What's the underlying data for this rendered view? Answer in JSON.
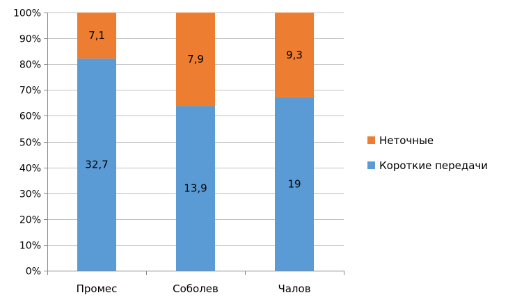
{
  "chart_data": {
    "type": "bar",
    "stacked": "percent",
    "categories": [
      "Промес",
      "Соболев",
      "Чалов"
    ],
    "series": [
      {
        "name": "Короткие передачи",
        "values": [
          32.7,
          13.9,
          19
        ],
        "labels": [
          "32,7",
          "13,9",
          "19"
        ],
        "color": "#5B9BD5"
      },
      {
        "name": "Неточные",
        "values": [
          7.1,
          7.9,
          9.3
        ],
        "labels": [
          "7,1",
          "7,9",
          "9,3"
        ],
        "color": "#ED7D31"
      }
    ],
    "ylim": [
      0,
      100
    ],
    "yticks": [
      "0%",
      "10%",
      "20%",
      "30%",
      "40%",
      "50%",
      "60%",
      "70%",
      "80%",
      "90%",
      "100%"
    ],
    "grid": true,
    "legend_position": "right",
    "legend_order": [
      "Неточные",
      "Короткие передачи"
    ],
    "title": "",
    "xlabel": "",
    "ylabel": ""
  }
}
